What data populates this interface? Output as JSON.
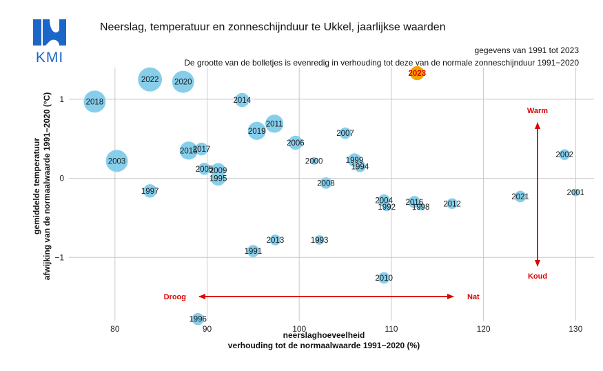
{
  "logo": {
    "text": "KMI",
    "color": "#1b66c9"
  },
  "chart_data": {
    "type": "scatter",
    "title": "Neerslag, temperatuur en zonneschijnduur te Ukkel, jaarlijkse waarden",
    "subtitle_period": "gegevens van 1991 tot 2023",
    "subtitle_note": "De grootte van de bolletjes is evenredig in verhouding tot deze van de normale zonneschijnduur 1991−2020",
    "xlabel_line1": "neerslaghoeveelheid",
    "xlabel_line2": "verhouding tot de normaalwaarde 1991−2020 (%)",
    "ylabel_line1": "gemiddelde temperatuur",
    "ylabel_line2": "afwijking van de normaalwaarde 1991−2020 (°C)",
    "xlim": [
      75,
      132
    ],
    "ylim": [
      -1.8,
      1.4
    ],
    "xticks": [
      80,
      90,
      100,
      110,
      120,
      130
    ],
    "yticks": [
      -1,
      0,
      1
    ],
    "grid": true,
    "bubble_color": "#87ceeb",
    "highlight_color": "#f5a300",
    "arrows": {
      "color": "#e00000",
      "warm": "Warm",
      "koud": "Koud",
      "droog": "Droog",
      "nat": "Nat"
    },
    "points": [
      {
        "year": "1991",
        "x": 95.0,
        "y": -0.92,
        "sun": 100
      },
      {
        "year": "1992",
        "x": 109.5,
        "y": -0.36,
        "sun": 90
      },
      {
        "year": "1993",
        "x": 102.2,
        "y": -0.78,
        "sun": 92
      },
      {
        "year": "1994",
        "x": 106.6,
        "y": 0.15,
        "sun": 98
      },
      {
        "year": "1995",
        "x": 91.2,
        "y": 0.0,
        "sun": 108
      },
      {
        "year": "1996",
        "x": 89.0,
        "y": -1.78,
        "sun": 100
      },
      {
        "year": "1997",
        "x": 83.8,
        "y": -0.16,
        "sun": 104
      },
      {
        "year": "1998",
        "x": 113.2,
        "y": -0.36,
        "sun": 86
      },
      {
        "year": "1999",
        "x": 106.0,
        "y": 0.23,
        "sun": 104
      },
      {
        "year": "2000",
        "x": 101.6,
        "y": 0.22,
        "sun": 86
      },
      {
        "year": "2001",
        "x": 130.0,
        "y": -0.18,
        "sun": 86
      },
      {
        "year": "2002",
        "x": 128.8,
        "y": 0.3,
        "sun": 96
      },
      {
        "year": "2003",
        "x": 80.2,
        "y": 0.22,
        "sun": 130
      },
      {
        "year": "2004",
        "x": 109.2,
        "y": -0.28,
        "sun": 100
      },
      {
        "year": "2005",
        "x": 89.7,
        "y": 0.12,
        "sun": 100
      },
      {
        "year": "2006",
        "x": 99.6,
        "y": 0.45,
        "sun": 106
      },
      {
        "year": "2007",
        "x": 105.0,
        "y": 0.57,
        "sun": 98
      },
      {
        "year": "2008",
        "x": 102.9,
        "y": -0.06,
        "sun": 98
      },
      {
        "year": "2009",
        "x": 91.2,
        "y": 0.1,
        "sun": 108
      },
      {
        "year": "2010",
        "x": 109.2,
        "y": -1.26,
        "sun": 98
      },
      {
        "year": "2011",
        "x": 97.3,
        "y": 0.69,
        "sun": 118
      },
      {
        "year": "2012",
        "x": 116.6,
        "y": -0.32,
        "sun": 96
      },
      {
        "year": "2013",
        "x": 97.4,
        "y": -0.78,
        "sun": 96
      },
      {
        "year": "2014",
        "x": 93.8,
        "y": 0.99,
        "sun": 106
      },
      {
        "year": "2015",
        "x": 88.0,
        "y": 0.35,
        "sun": 118
      },
      {
        "year": "2016",
        "x": 112.5,
        "y": -0.3,
        "sun": 100
      },
      {
        "year": "2017",
        "x": 89.4,
        "y": 0.37,
        "sun": 102
      },
      {
        "year": "2018",
        "x": 77.8,
        "y": 0.97,
        "sun": 130
      },
      {
        "year": "2019",
        "x": 95.4,
        "y": 0.6,
        "sun": 118
      },
      {
        "year": "2020",
        "x": 87.4,
        "y": 1.22,
        "sun": 130
      },
      {
        "year": "2021",
        "x": 124.0,
        "y": -0.23,
        "sun": 98
      },
      {
        "year": "2022",
        "x": 83.8,
        "y": 1.25,
        "sun": 136
      },
      {
        "year": "2023",
        "x": 112.8,
        "y": 1.33,
        "sun": 106,
        "highlight": true
      }
    ]
  }
}
